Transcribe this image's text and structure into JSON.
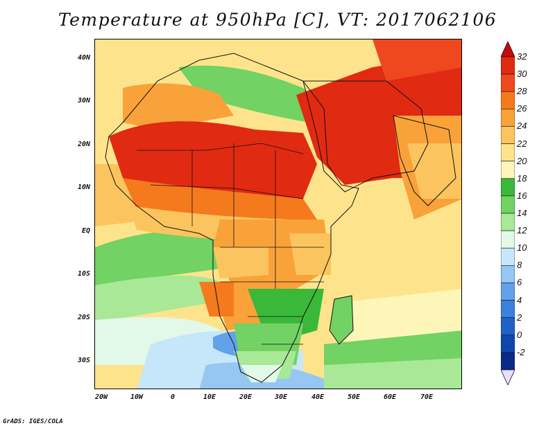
{
  "title": "Temperature at 950hPa [C], VT: 2017062106",
  "footer": "GrADS: IGES/COLA",
  "lat_labels": [
    "40N",
    "30N",
    "20N",
    "10N",
    "EQ",
    "10S",
    "20S",
    "30S"
  ],
  "lon_labels": [
    "20W",
    "10W",
    "0",
    "10E",
    "20E",
    "30E",
    "40E",
    "50E",
    "60E",
    "70E"
  ],
  "colorbar": {
    "labels": [
      "32",
      "30",
      "28",
      "26",
      "24",
      "22",
      "20",
      "18",
      "16",
      "14",
      "12",
      "10",
      "8",
      "6",
      "4",
      "2",
      "0",
      "-2"
    ],
    "colors": [
      "#e02a12",
      "#f0481e",
      "#f57a1e",
      "#f9a23a",
      "#fbc45e",
      "#fde48c",
      "#fdf6b8",
      "#3ab83a",
      "#72d263",
      "#a8e896",
      "#e2f8e8",
      "#c6e6fa",
      "#96c6f2",
      "#62a2ea",
      "#3a82de",
      "#1e62c8",
      "#0e48ac",
      "#0a2a88"
    ],
    "top_arrow_color": "#c80a0a",
    "bottom_arrow_color": "#e6e0f8"
  },
  "map_colors": {
    "ocean_hot": "#fde48c",
    "ocean_warm": "#fbc45e",
    "ocean_mild": "#fdf6b8",
    "green_dark": "#3ab83a",
    "green_mid": "#72d263",
    "green_light": "#a8e896",
    "pale": "#e2f8e8",
    "blue_light": "#c6e6fa",
    "blue_mid": "#96c6f2",
    "blue_deep": "#62a2ea",
    "hot": "#e02a12",
    "orange": "#f57a1e",
    "orange_light": "#f9a23a"
  }
}
